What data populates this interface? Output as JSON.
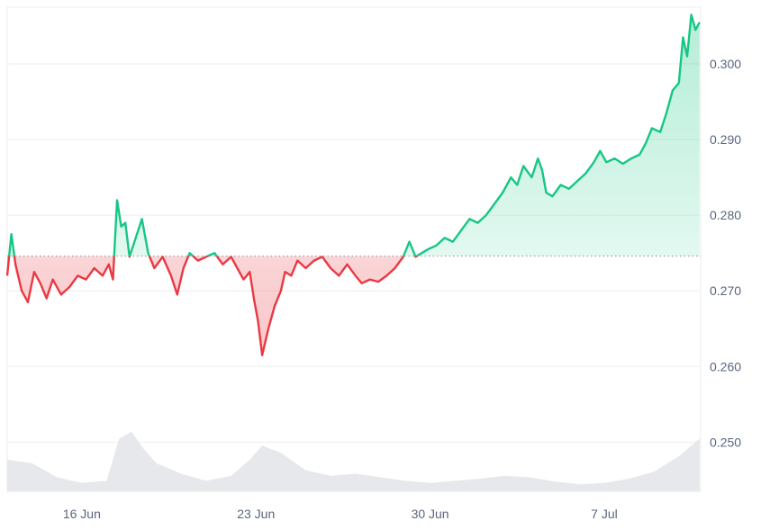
{
  "chart_data": {
    "type": "line",
    "title": "",
    "xlabel": "",
    "ylabel": "",
    "x_ticks": [
      "16 Jun",
      "23 Jun",
      "30 Jun",
      "7 Jul"
    ],
    "y_ticks": [
      "0.250",
      "0.260",
      "0.270",
      "0.280",
      "0.290",
      "0.300"
    ],
    "ylim": [
      0.2435,
      0.3075
    ],
    "xlim": [
      "2024-06-13",
      "2024-07-10"
    ],
    "baseline": 0.2746,
    "grid": "horizontal",
    "legend": "none",
    "colors": {
      "up": "#16c784",
      "down": "#ea3943",
      "grid": "#eeeeee",
      "axis_text": "#58667e",
      "volume": "#e3e6ea"
    },
    "series": [
      {
        "values": [
          [
            "2024-06-13 00:00",
            0.272
          ],
          [
            "2024-06-13 04:00",
            0.2775
          ],
          [
            "2024-06-13 08:00",
            0.2735
          ],
          [
            "2024-06-13 14:00",
            0.27
          ],
          [
            "2024-06-13 20:00",
            0.2685
          ],
          [
            "2024-06-14 02:00",
            0.2725
          ],
          [
            "2024-06-14 08:00",
            0.271
          ],
          [
            "2024-06-14 14:00",
            0.269
          ],
          [
            "2024-06-14 20:00",
            0.2715
          ],
          [
            "2024-06-15 04:00",
            0.2695
          ],
          [
            "2024-06-15 12:00",
            0.2705
          ],
          [
            "2024-06-15 20:00",
            0.272
          ],
          [
            "2024-06-16 04:00",
            0.2715
          ],
          [
            "2024-06-16 12:00",
            0.273
          ],
          [
            "2024-06-16 20:00",
            0.272
          ],
          [
            "2024-06-17 02:00",
            0.2735
          ],
          [
            "2024-06-17 06:00",
            0.2715
          ],
          [
            "2024-06-17 10:00",
            0.282
          ],
          [
            "2024-06-17 14:00",
            0.2785
          ],
          [
            "2024-06-17 18:00",
            0.279
          ],
          [
            "2024-06-17 22:00",
            0.2745
          ],
          [
            "2024-06-18 04:00",
            0.277
          ],
          [
            "2024-06-18 10:00",
            0.2795
          ],
          [
            "2024-06-18 16:00",
            0.275
          ],
          [
            "2024-06-18 22:00",
            0.273
          ],
          [
            "2024-06-19 06:00",
            0.2745
          ],
          [
            "2024-06-19 14:00",
            0.272
          ],
          [
            "2024-06-19 20:00",
            0.2695
          ],
          [
            "2024-06-20 02:00",
            0.273
          ],
          [
            "2024-06-20 08:00",
            0.275
          ],
          [
            "2024-06-20 16:00",
            0.274
          ],
          [
            "2024-06-21 00:00",
            0.2745
          ],
          [
            "2024-06-21 08:00",
            0.275
          ],
          [
            "2024-06-21 16:00",
            0.2735
          ],
          [
            "2024-06-22 00:00",
            0.2745
          ],
          [
            "2024-06-22 06:00",
            0.273
          ],
          [
            "2024-06-22 12:00",
            0.2715
          ],
          [
            "2024-06-22 18:00",
            0.2725
          ],
          [
            "2024-06-22 22:00",
            0.269
          ],
          [
            "2024-06-23 02:00",
            0.266
          ],
          [
            "2024-06-23 06:00",
            0.2615
          ],
          [
            "2024-06-23 12:00",
            0.265
          ],
          [
            "2024-06-23 18:00",
            0.268
          ],
          [
            "2024-06-24 00:00",
            0.27
          ],
          [
            "2024-06-24 04:00",
            0.2725
          ],
          [
            "2024-06-24 10:00",
            0.272
          ],
          [
            "2024-06-24 16:00",
            0.274
          ],
          [
            "2024-06-25 00:00",
            0.273
          ],
          [
            "2024-06-25 08:00",
            0.274
          ],
          [
            "2024-06-25 16:00",
            0.2745
          ],
          [
            "2024-06-26 00:00",
            0.273
          ],
          [
            "2024-06-26 08:00",
            0.272
          ],
          [
            "2024-06-26 16:00",
            0.2735
          ],
          [
            "2024-06-27 00:00",
            0.272
          ],
          [
            "2024-06-27 06:00",
            0.271
          ],
          [
            "2024-06-27 14:00",
            0.2715
          ],
          [
            "2024-06-27 22:00",
            0.2712
          ],
          [
            "2024-06-28 06:00",
            0.272
          ],
          [
            "2024-06-28 14:00",
            0.273
          ],
          [
            "2024-06-28 22:00",
            0.2745
          ],
          [
            "2024-06-29 04:00",
            0.2765
          ],
          [
            "2024-06-29 10:00",
            0.2745
          ],
          [
            "2024-06-29 16:00",
            0.275
          ],
          [
            "2024-06-29 22:00",
            0.2755
          ],
          [
            "2024-06-30 06:00",
            0.276
          ],
          [
            "2024-06-30 14:00",
            0.277
          ],
          [
            "2024-06-30 22:00",
            0.2765
          ],
          [
            "2024-07-01 06:00",
            0.278
          ],
          [
            "2024-07-01 14:00",
            0.2795
          ],
          [
            "2024-07-01 22:00",
            0.279
          ],
          [
            "2024-07-02 06:00",
            0.28
          ],
          [
            "2024-07-02 14:00",
            0.2815
          ],
          [
            "2024-07-02 22:00",
            0.283
          ],
          [
            "2024-07-03 06:00",
            0.285
          ],
          [
            "2024-07-03 12:00",
            0.284
          ],
          [
            "2024-07-03 18:00",
            0.2865
          ],
          [
            "2024-07-04 02:00",
            0.285
          ],
          [
            "2024-07-04 08:00",
            0.2875
          ],
          [
            "2024-07-04 12:00",
            0.286
          ],
          [
            "2024-07-04 16:00",
            0.283
          ],
          [
            "2024-07-04 22:00",
            0.2825
          ],
          [
            "2024-07-05 06:00",
            0.284
          ],
          [
            "2024-07-05 14:00",
            0.2835
          ],
          [
            "2024-07-05 22:00",
            0.2845
          ],
          [
            "2024-07-06 06:00",
            0.2855
          ],
          [
            "2024-07-06 14:00",
            0.287
          ],
          [
            "2024-07-06 20:00",
            0.2885
          ],
          [
            "2024-07-07 02:00",
            0.287
          ],
          [
            "2024-07-07 10:00",
            0.2875
          ],
          [
            "2024-07-07 18:00",
            0.2868
          ],
          [
            "2024-07-08 02:00",
            0.2875
          ],
          [
            "2024-07-08 10:00",
            0.288
          ],
          [
            "2024-07-08 16:00",
            0.2895
          ],
          [
            "2024-07-08 22:00",
            0.2915
          ],
          [
            "2024-07-09 06:00",
            0.291
          ],
          [
            "2024-07-09 12:00",
            0.2935
          ],
          [
            "2024-07-09 18:00",
            0.2965
          ],
          [
            "2024-07-10 00:00",
            0.2975
          ],
          [
            "2024-07-10 04:00",
            0.3035
          ],
          [
            "2024-07-10 08:00",
            0.301
          ],
          [
            "2024-07-10 12:00",
            0.3065
          ],
          [
            "2024-07-10 16:00",
            0.3045
          ],
          [
            "2024-07-10 20:00",
            0.3055
          ]
        ]
      }
    ],
    "volume": [
      [
        "2024-06-13 00:00",
        0.45
      ],
      [
        "2024-06-14 00:00",
        0.4
      ],
      [
        "2024-06-15 00:00",
        0.2
      ],
      [
        "2024-06-16 00:00",
        0.12
      ],
      [
        "2024-06-17 00:00",
        0.15
      ],
      [
        "2024-06-17 12:00",
        0.75
      ],
      [
        "2024-06-18 00:00",
        0.85
      ],
      [
        "2024-06-18 12:00",
        0.6
      ],
      [
        "2024-06-19 00:00",
        0.4
      ],
      [
        "2024-06-20 00:00",
        0.25
      ],
      [
        "2024-06-21 00:00",
        0.15
      ],
      [
        "2024-06-22 00:00",
        0.22
      ],
      [
        "2024-06-22 18:00",
        0.45
      ],
      [
        "2024-06-23 06:00",
        0.65
      ],
      [
        "2024-06-24 00:00",
        0.55
      ],
      [
        "2024-06-25 00:00",
        0.3
      ],
      [
        "2024-06-26 00:00",
        0.22
      ],
      [
        "2024-06-27 00:00",
        0.25
      ],
      [
        "2024-06-28 00:00",
        0.2
      ],
      [
        "2024-06-29 00:00",
        0.15
      ],
      [
        "2024-06-30 00:00",
        0.12
      ],
      [
        "2024-07-01 00:00",
        0.15
      ],
      [
        "2024-07-02 00:00",
        0.18
      ],
      [
        "2024-07-03 00:00",
        0.22
      ],
      [
        "2024-07-04 00:00",
        0.2
      ],
      [
        "2024-07-05 00:00",
        0.14
      ],
      [
        "2024-07-06 00:00",
        0.1
      ],
      [
        "2024-07-07 00:00",
        0.12
      ],
      [
        "2024-07-08 00:00",
        0.18
      ],
      [
        "2024-07-09 00:00",
        0.28
      ],
      [
        "2024-07-10 00:00",
        0.5
      ],
      [
        "2024-07-10 20:00",
        0.75
      ]
    ]
  }
}
